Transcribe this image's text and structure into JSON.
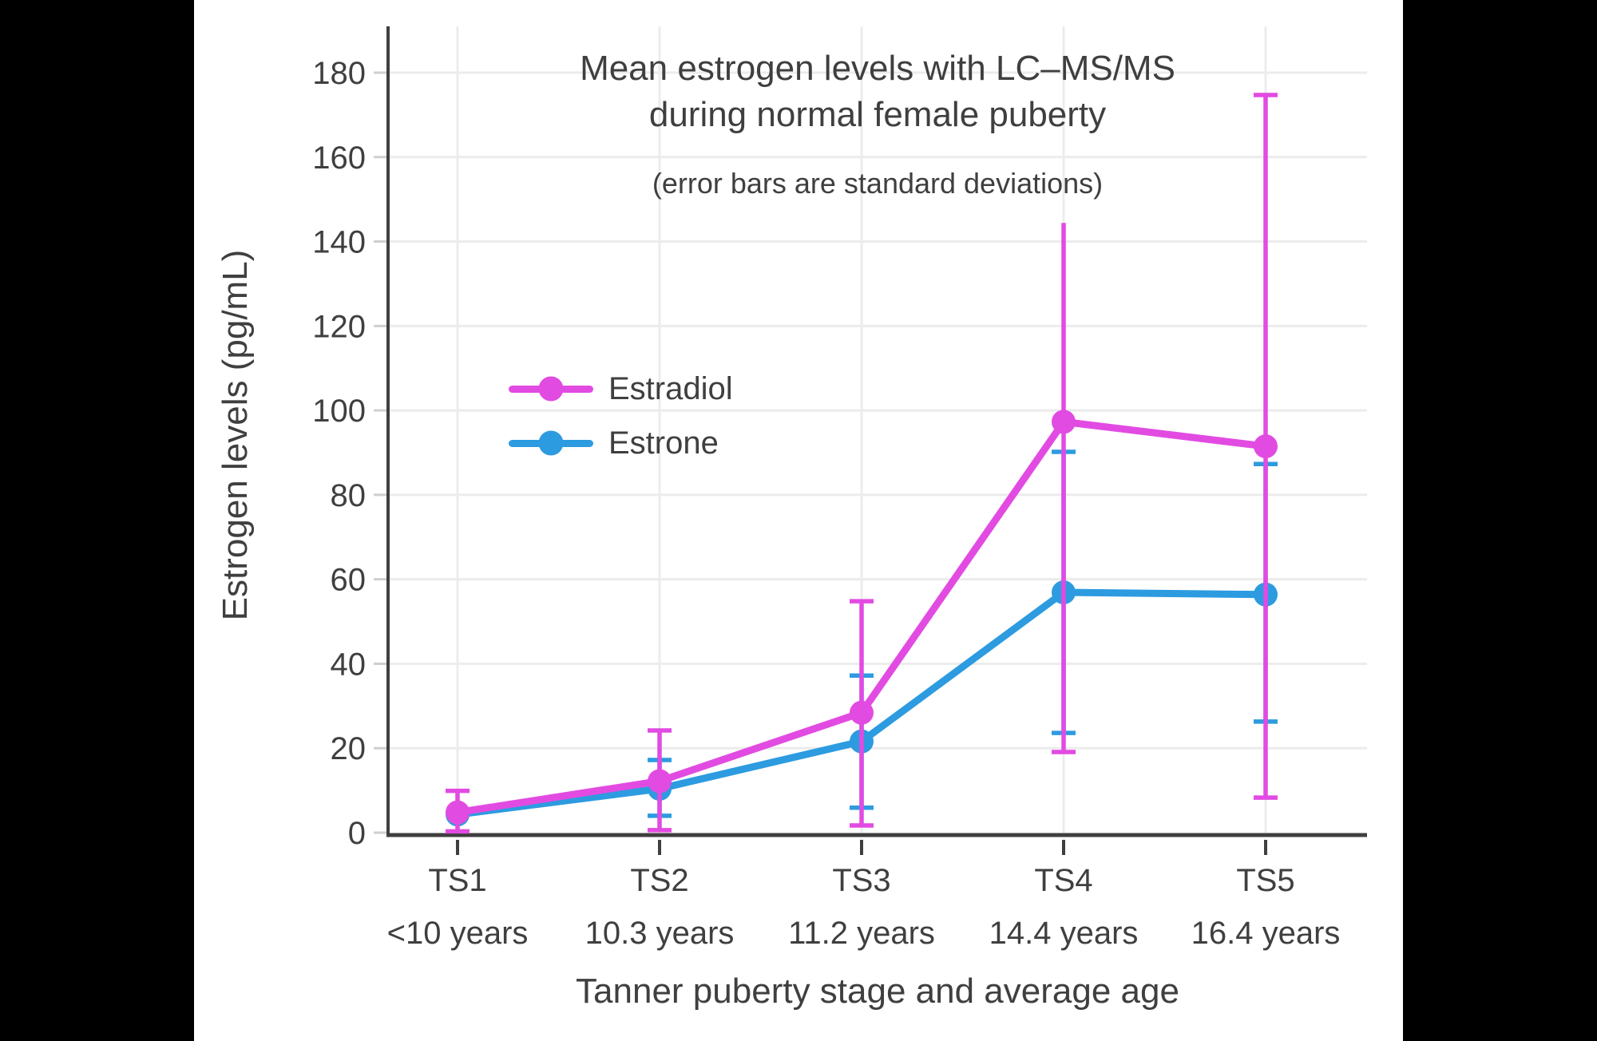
{
  "title": {
    "line1": "Mean estrogen levels with LC–MS/MS",
    "line2": "during normal female puberty",
    "subtitle": "(error bars are standard deviations)"
  },
  "chart_data": {
    "type": "line",
    "title": "Mean estrogen levels with LC–MS/MS during normal female puberty",
    "subtitle": "(error bars are standard deviations)",
    "xlabel": "Tanner puberty stage and average age",
    "ylabel": "Estrogen levels (pg/mL)",
    "ylim": [
      0,
      190
    ],
    "y_ticks": [
      0,
      20,
      40,
      60,
      80,
      100,
      120,
      140,
      160,
      180
    ],
    "grid": true,
    "legend_position": "inside-upper-left",
    "categories": [
      {
        "stage": "TS1",
        "age": "<10 years"
      },
      {
        "stage": "TS2",
        "age": "10.3 years"
      },
      {
        "stage": "TS3",
        "age": "11.2 years"
      },
      {
        "stage": "TS4",
        "age": "14.4 years"
      },
      {
        "stage": "TS5",
        "age": "16.4 years"
      }
    ],
    "series": [
      {
        "name": "Estradiol",
        "color": "#e24be2",
        "values": [
          4.8,
          12.2,
          28.4,
          97.3,
          91.5
        ],
        "err_low": [
          0.3,
          0.6,
          1.7,
          19.1,
          8.3
        ],
        "err_high": [
          9.9,
          24.2,
          54.8,
          144.4,
          174.7
        ]
      },
      {
        "name": "Estrone",
        "color": "#2d9be0",
        "values": [
          4.3,
          10.4,
          21.6,
          56.9,
          56.4
        ],
        "err_low": [
          null,
          4.0,
          5.9,
          23.6,
          26.3
        ],
        "err_high": [
          null,
          17.2,
          37.2,
          90.2,
          87.3
        ]
      }
    ],
    "colors": {
      "text": "#3f3f3f",
      "grid": "#ececec",
      "axis": "#3f3f3f",
      "y_tick": "#cfcfcf",
      "background": "#ffffff",
      "letterbox": "#000000"
    }
  }
}
